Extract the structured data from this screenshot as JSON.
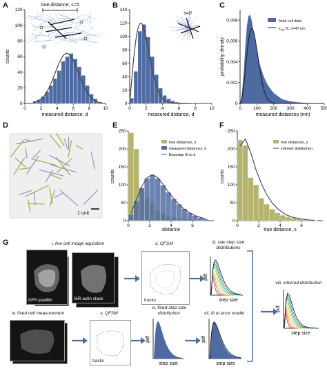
{
  "labels": {
    "A": "A",
    "B": "B",
    "C": "C",
    "D": "D",
    "E": "E",
    "F": "F",
    "G": "G"
  },
  "colors": {
    "measured": "#4e6aa3",
    "true": "#b5b46e",
    "fit": "#444444",
    "track_light": "#8aa8de"
  },
  "panelA": {
    "annotation": "true distance, s=5",
    "chart_data": {
      "type": "bar",
      "bins": [
        1,
        1.5,
        2,
        2.5,
        3,
        3.5,
        4,
        4.5,
        5,
        5.5,
        6,
        6.5,
        7,
        7.5,
        8,
        8.5,
        9
      ],
      "values": [
        3,
        5,
        9,
        15,
        23,
        32,
        42,
        54,
        60,
        64,
        57,
        47,
        36,
        23,
        12,
        6,
        2
      ],
      "fit": "gaussian",
      "xlabel": "measured distance, d",
      "ylabel": "counts",
      "xlim": [
        0,
        10
      ],
      "ylim": [
        0,
        120
      ],
      "xticks": [
        0,
        2,
        4,
        6,
        8,
        10
      ],
      "yticks": [
        0,
        20,
        40,
        60,
        80,
        100,
        120
      ]
    }
  },
  "panelB": {
    "annotation": "s=0",
    "chart_data": {
      "type": "bar",
      "bins": [
        0,
        0.5,
        1,
        1.5,
        2,
        2.5,
        3,
        3.5,
        4,
        4.5,
        5,
        5.5,
        6,
        6.5
      ],
      "values": [
        8,
        48,
        108,
        118,
        99,
        70,
        43,
        23,
        12,
        7,
        4,
        2,
        1,
        1
      ],
      "fit": "rayleigh",
      "xlabel": "measured distance, d",
      "ylabel": "",
      "xlim": [
        0,
        10
      ],
      "ylim": [
        0,
        140
      ],
      "xticks": [
        0,
        2,
        4,
        6,
        8,
        10
      ],
      "yticks": [
        0,
        20,
        40,
        60,
        80,
        100,
        120,
        140
      ]
    }
  },
  "panelC": {
    "chart_data": {
      "type": "area",
      "x": [
        0,
        10,
        20,
        30,
        40,
        50,
        60,
        70,
        80,
        90,
        100,
        120,
        140,
        160,
        180,
        200,
        250,
        300,
        350,
        400,
        450,
        500
      ],
      "y": [
        0,
        0.0008,
        0.0026,
        0.0052,
        0.0074,
        0.0084,
        0.0085,
        0.0079,
        0.0069,
        0.0059,
        0.005,
        0.0036,
        0.0026,
        0.0019,
        0.0014,
        0.001,
        0.0004,
        0.0002,
        0.0001,
        4e-05,
        2e-05,
        0
      ],
      "fit_sigma_nm": 47,
      "legend": [
        "fixed cell data",
        "x",
        "NC",
        " fit, σ=47 nm"
      ],
      "xlabel": "measured distances (nm)",
      "ylabel": "probability density",
      "xlim": [
        0,
        500
      ],
      "ylim": [
        0,
        0.009
      ],
      "xticks": [
        0,
        100,
        200,
        300,
        400,
        500
      ],
      "yticks": [
        "0",
        "0.002",
        "0.004",
        "0.006",
        "0.008"
      ]
    }
  },
  "panelD": {
    "scalebar_label": "1 unit"
  },
  "panelE": {
    "chart_data": {
      "type": "bar",
      "x": [
        0,
        0.5,
        1,
        1.5,
        2,
        2.5,
        3,
        3.5,
        4,
        4.5,
        5,
        5.5,
        6,
        6.5,
        7
      ],
      "series": [
        {
          "name": "true distances, s",
          "values": [
            245,
            200,
            88,
            63,
            48,
            28,
            22,
            12,
            10,
            6,
            5,
            4,
            2,
            1,
            0
          ]
        },
        {
          "name": "measured distances, d",
          "values": [
            18,
            55,
            92,
            118,
            128,
            118,
            99,
            79,
            61,
            46,
            33,
            22,
            14,
            8,
            4
          ]
        },
        {
          "name": "Bayesian fit to d",
          "values": [
            20,
            58,
            95,
            120,
            128,
            120,
            101,
            80,
            61,
            45,
            32,
            22,
            14,
            9,
            5
          ]
        }
      ],
      "xlabel": "distance",
      "ylabel": "counts",
      "xlim": [
        0,
        8
      ],
      "ylim": [
        0,
        250
      ],
      "xticks": [
        0,
        2,
        4,
        6
      ],
      "yticks": [
        0,
        50,
        100,
        150,
        200,
        250
      ]
    }
  },
  "panelF": {
    "chart_data": {
      "type": "bar",
      "x": [
        0,
        0.5,
        1,
        1.5,
        2,
        2.5,
        3,
        3.5,
        4,
        4.5,
        5,
        5.5,
        6,
        6.5,
        7
      ],
      "series": [
        {
          "name": "true distances, s",
          "values": [
            225,
            210,
            120,
            100,
            63,
            46,
            32,
            22,
            15,
            10,
            7,
            5,
            3,
            2,
            1
          ]
        },
        {
          "name": "inferred distribution",
          "values": [
            208,
            228,
            190,
            142,
            103,
            73,
            50,
            34,
            22,
            14,
            9,
            6,
            4,
            2,
            1
          ]
        }
      ],
      "xlabel": "true distance, s",
      "ylabel": "counts",
      "xlim": [
        0,
        8
      ],
      "ylim": [
        0,
        250
      ],
      "xticks": [
        0,
        2,
        4,
        6
      ],
      "yticks": [
        0,
        50,
        100,
        150,
        200,
        250
      ]
    }
  },
  "panelG": {
    "step1": "i, live cell image aquisition",
    "gfp": "GFP-paxillin",
    "sir": "SiR-actin stack",
    "step2": "ii, QFSM",
    "tracks1": "tracks",
    "step3a": "iii, raw step size",
    "step3b": "distributions",
    "pdf": "pdf",
    "step_size": "step size",
    "step4": "iv, fixed cell measurement",
    "step5": "v, QFSM",
    "tracks2": "tracks",
    "step6a": "vi, fixed step size",
    "step6b": "distribution",
    "step7": "vii, fit to error model",
    "step8": "viii, inferred distribution"
  }
}
